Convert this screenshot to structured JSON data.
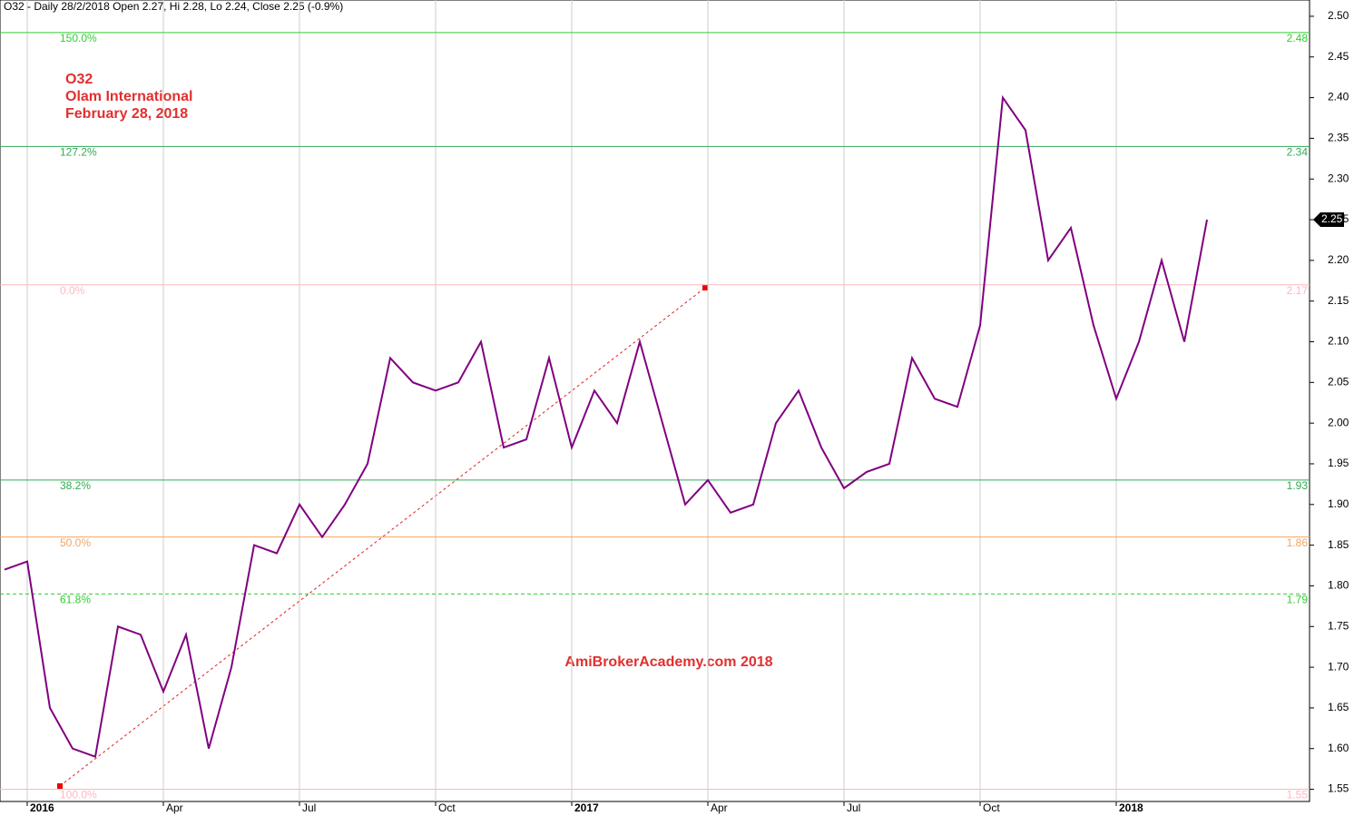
{
  "chart_data": {
    "type": "line",
    "header": "O32 - Daily 28/2/2018 Open 2.27, Hi 2.28, Lo 2.24, Close 2.25 (-0.9%)",
    "annotations": [
      "O32",
      "Olam International",
      "February 28, 2018"
    ],
    "watermark": "AmiBrokerAcademy.com   2018",
    "categories": [
      null,
      "2016",
      null,
      null,
      null,
      null,
      null,
      "Apr",
      null,
      null,
      null,
      null,
      null,
      "Jul",
      null,
      null,
      null,
      null,
      null,
      "Oct",
      null,
      null,
      null,
      null,
      null,
      "2017",
      null,
      null,
      null,
      null,
      null,
      "Apr",
      null,
      null,
      null,
      null,
      null,
      "Jul",
      null,
      null,
      null,
      null,
      null,
      "Oct",
      null,
      null,
      null,
      null,
      null,
      "2018",
      null,
      null,
      null,
      null
    ],
    "series": [
      {
        "name": "O32",
        "color": "#800080",
        "values": [
          1.82,
          1.83,
          1.65,
          1.6,
          1.59,
          1.75,
          1.74,
          1.67,
          1.74,
          1.6,
          1.7,
          1.85,
          1.84,
          1.9,
          1.86,
          1.9,
          1.95,
          2.08,
          2.05,
          2.04,
          2.05,
          2.1,
          1.97,
          1.98,
          2.08,
          1.97,
          2.04,
          2.0,
          2.1,
          2.0,
          1.9,
          1.93,
          1.89,
          1.9,
          2.0,
          2.04,
          1.97,
          1.92,
          1.94,
          1.95,
          2.08,
          2.03,
          2.02,
          2.12,
          2.4,
          2.36,
          2.2,
          2.24,
          2.12,
          2.03,
          2.1,
          2.2,
          2.1,
          2.25
        ]
      }
    ],
    "levels": [
      {
        "label": "150.0%",
        "value": 2.48,
        "color": "#33cc33"
      },
      {
        "label": "127.2%",
        "value": 2.34,
        "color": "#33aa55"
      },
      {
        "label": "0.0%",
        "value": 2.17,
        "color": "#ffb6c1"
      },
      {
        "label": "38.2%",
        "value": 1.93,
        "color": "#33aa55"
      },
      {
        "label": "50.0%",
        "value": 1.86,
        "color": "#f4a460"
      },
      {
        "label": "61.8%",
        "value": 1.79,
        "color": "#33cc33",
        "dashed": true
      },
      {
        "label": "100.0%",
        "value": 1.55,
        "color": "#ffb6c1"
      }
    ],
    "ylim": [
      1.535,
      2.52
    ],
    "yticks": [
      1.55,
      {
        "value": 1.6,
        "label": "1.60"
      },
      1.65,
      {
        "value": 1.7,
        "label": "1.70"
      },
      1.75,
      {
        "value": 1.8,
        "label": "1.80"
      },
      1.85,
      {
        "value": 1.9,
        "label": "1.90"
      },
      1.95,
      {
        "value": 2,
        "label": "2.00"
      },
      2.05,
      {
        "value": 2.1,
        "label": "2.10"
      },
      2.15,
      {
        "value": 2.2,
        "label": "2.20"
      },
      2.25,
      {
        "value": 2.3,
        "label": "2.30"
      },
      2.35,
      {
        "value": 2.4,
        "label": "2.40"
      },
      2.45,
      {
        "value": 2.5,
        "label": "2.50"
      }
    ],
    "grid": true
  }
}
